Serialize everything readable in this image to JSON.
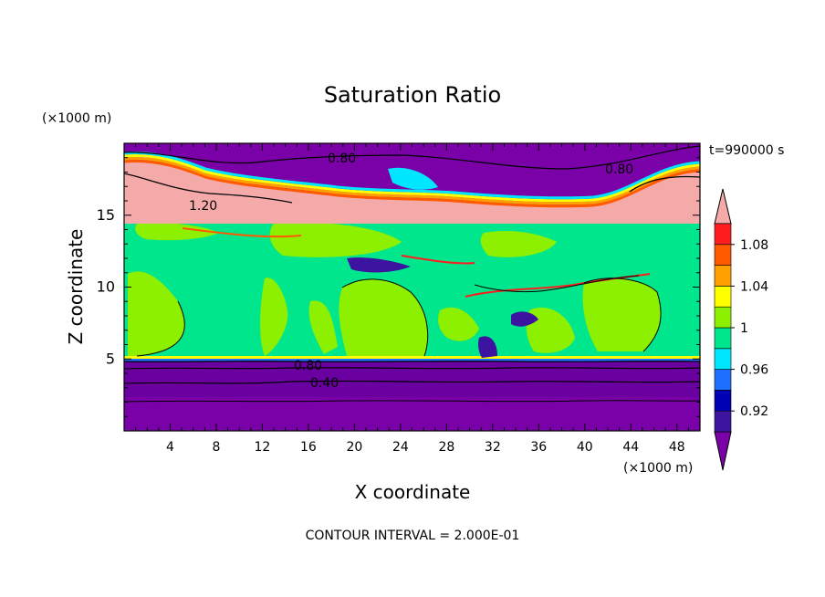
{
  "chart_data": {
    "type": "heatmap",
    "title": "Saturation Ratio",
    "xlabel": "X coordinate",
    "ylabel": "Z coordinate",
    "x_unit": "(×1000 m)",
    "y_unit": "(×1000 m)",
    "time_label": "t=990000 s",
    "footer": "CONTOUR INTERVAL = 2.000E-01",
    "xlim": [
      0,
      50
    ],
    "ylim": [
      0,
      20
    ],
    "x_ticks": [
      "4",
      "8",
      "12",
      "16",
      "20",
      "24",
      "28",
      "32",
      "36",
      "40",
      "44",
      "48"
    ],
    "y_ticks": [
      "5",
      "10",
      "15"
    ],
    "colorbar": {
      "bands": [
        {
          "range": "<0.90",
          "color": "#7a00a8"
        },
        {
          "range": "0.90-0.92",
          "color": "#3c14a0"
        },
        {
          "range": "0.92-0.94",
          "color": "#0000b4"
        },
        {
          "range": "0.94-0.96",
          "color": "#1e6eff"
        },
        {
          "range": "0.96-0.98",
          "color": "#00e6ff"
        },
        {
          "range": "0.98-1.00",
          "color": "#00e68c"
        },
        {
          "range": "1.00-1.02",
          "color": "#8cf000"
        },
        {
          "range": "1.02-1.04",
          "color": "#ffff00"
        },
        {
          "range": "1.04-1.06",
          "color": "#ffa000"
        },
        {
          "range": "1.06-1.08",
          "color": "#ff5a00"
        },
        {
          "range": "1.08-1.10",
          "color": "#ff1e1e"
        },
        {
          "range": ">1.10",
          "color": "#f5aaaa"
        }
      ],
      "labels": [
        "0.92",
        "0.96",
        "1",
        "1.04",
        "1.08"
      ]
    },
    "contour_labels": [
      "0.80",
      "0.80",
      "1.20",
      "0.80",
      "0.40"
    ]
  }
}
